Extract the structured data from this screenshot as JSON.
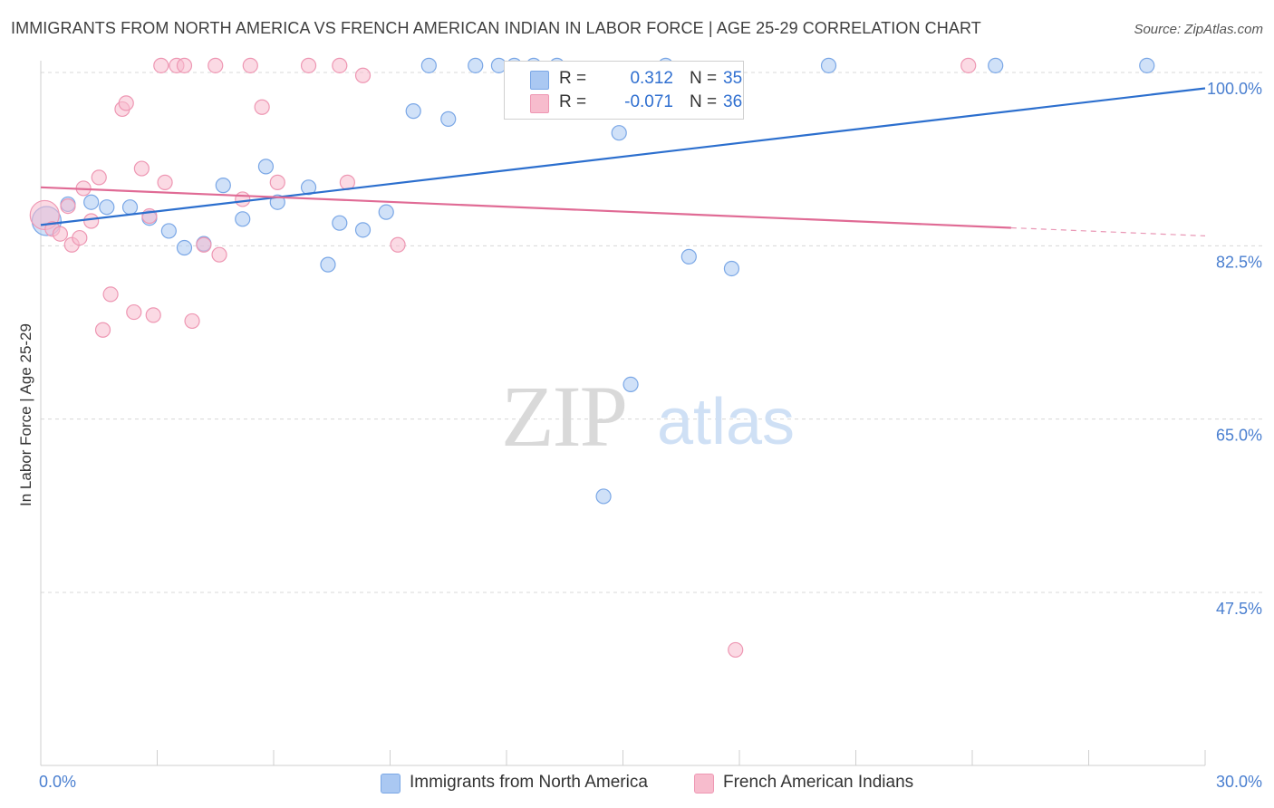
{
  "title": "IMMIGRANTS FROM NORTH AMERICA VS FRENCH AMERICAN INDIAN IN LABOR FORCE | AGE 25-29 CORRELATION CHART",
  "source": "Source: ZipAtlas.com",
  "watermark": {
    "zip": "ZIP",
    "atlas": "atlas"
  },
  "legend": {
    "r_label": "R =",
    "n_label": "N =",
    "rows": [
      {
        "r": "0.312",
        "n": "35"
      },
      {
        "r": "-0.071",
        "n": "36"
      }
    ]
  },
  "colors": {
    "blue_fill": "#aac8f2",
    "blue_stroke": "#7aa7e6",
    "blue_line": "#2c6fce",
    "pink_fill": "#f7bccd",
    "pink_stroke": "#ee97b3",
    "pink_line": "#e06b95",
    "grid": "#d8d8d8",
    "axis_label": "#4a7fd0"
  },
  "chart_data": {
    "type": "scatter",
    "title": "IMMIGRANTS FROM NORTH AMERICA VS FRENCH AMERICAN INDIAN IN LABOR FORCE | AGE 25-29 CORRELATION CHART",
    "xlabel": "",
    "ylabel": "In Labor Force | Age 25-29",
    "xlim": [
      0,
      30
    ],
    "ylim": [
      32,
      102
    ],
    "x_tick_labels": [
      {
        "value": 0,
        "label": "0.0%"
      },
      {
        "value": 30,
        "label": "30.0%"
      }
    ],
    "x_minor_ticks": [
      3,
      6,
      9,
      12,
      15,
      18,
      21,
      24,
      27,
      30
    ],
    "y_ticks": [
      {
        "value": 100,
        "label": "100.0%"
      },
      {
        "value": 82.5,
        "label": "82.5%"
      },
      {
        "value": 65,
        "label": "65.0%"
      },
      {
        "value": 47.5,
        "label": "47.5%"
      }
    ],
    "series": [
      {
        "name": "Immigrants from North America",
        "color": "blue",
        "trend": {
          "x0": 0,
          "y0": 84.6,
          "x1": 30,
          "y1": 98.4,
          "dashed_from": null
        },
        "points": [
          {
            "x": 0.15,
            "y": 85.0,
            "big": true
          },
          {
            "x": 0.7,
            "y": 86.7
          },
          {
            "x": 1.3,
            "y": 86.9
          },
          {
            "x": 1.7,
            "y": 86.4
          },
          {
            "x": 2.3,
            "y": 86.4
          },
          {
            "x": 2.8,
            "y": 85.3
          },
          {
            "x": 3.3,
            "y": 84.0
          },
          {
            "x": 3.7,
            "y": 82.3
          },
          {
            "x": 4.2,
            "y": 82.7
          },
          {
            "x": 4.7,
            "y": 88.6
          },
          {
            "x": 5.2,
            "y": 85.2
          },
          {
            "x": 5.8,
            "y": 90.5
          },
          {
            "x": 6.1,
            "y": 86.9
          },
          {
            "x": 6.9,
            "y": 88.4
          },
          {
            "x": 7.4,
            "y": 80.6
          },
          {
            "x": 7.7,
            "y": 84.8
          },
          {
            "x": 8.3,
            "y": 84.1
          },
          {
            "x": 8.9,
            "y": 85.9
          },
          {
            "x": 9.6,
            "y": 96.1
          },
          {
            "x": 10.0,
            "y": 100.7
          },
          {
            "x": 10.5,
            "y": 95.3
          },
          {
            "x": 11.2,
            "y": 100.7
          },
          {
            "x": 11.8,
            "y": 100.7
          },
          {
            "x": 12.2,
            "y": 100.7
          },
          {
            "x": 12.7,
            "y": 100.7
          },
          {
            "x": 14.9,
            "y": 93.9
          },
          {
            "x": 15.2,
            "y": 68.5
          },
          {
            "x": 14.5,
            "y": 57.2
          },
          {
            "x": 16.1,
            "y": 100.7
          },
          {
            "x": 16.7,
            "y": 81.4
          },
          {
            "x": 17.8,
            "y": 80.2
          },
          {
            "x": 20.3,
            "y": 100.7
          },
          {
            "x": 24.6,
            "y": 100.7
          },
          {
            "x": 28.5,
            "y": 100.7
          },
          {
            "x": 13.3,
            "y": 100.7
          }
        ]
      },
      {
        "name": "French American Indians",
        "color": "pink",
        "trend": {
          "x0": 0,
          "y0": 88.4,
          "x1": 30,
          "y1": 83.5,
          "dashed_from": 25
        },
        "points": [
          {
            "x": 0.1,
            "y": 85.6,
            "big": true
          },
          {
            "x": 0.3,
            "y": 84.2
          },
          {
            "x": 0.5,
            "y": 83.7
          },
          {
            "x": 0.7,
            "y": 86.5
          },
          {
            "x": 0.8,
            "y": 82.6
          },
          {
            "x": 1.0,
            "y": 83.3
          },
          {
            "x": 1.1,
            "y": 88.3
          },
          {
            "x": 1.3,
            "y": 85.0
          },
          {
            "x": 1.5,
            "y": 89.4
          },
          {
            "x": 1.6,
            "y": 74.0
          },
          {
            "x": 1.8,
            "y": 77.6
          },
          {
            "x": 2.1,
            "y": 96.3
          },
          {
            "x": 2.2,
            "y": 96.9
          },
          {
            "x": 2.4,
            "y": 75.8
          },
          {
            "x": 2.6,
            "y": 90.3
          },
          {
            "x": 2.8,
            "y": 85.5
          },
          {
            "x": 2.9,
            "y": 75.5
          },
          {
            "x": 3.1,
            "y": 100.7
          },
          {
            "x": 3.2,
            "y": 88.9
          },
          {
            "x": 3.5,
            "y": 100.7
          },
          {
            "x": 3.7,
            "y": 100.7
          },
          {
            "x": 3.9,
            "y": 74.9
          },
          {
            "x": 4.2,
            "y": 82.6
          },
          {
            "x": 4.6,
            "y": 81.6
          },
          {
            "x": 4.5,
            "y": 100.7
          },
          {
            "x": 5.2,
            "y": 87.2
          },
          {
            "x": 5.4,
            "y": 100.7
          },
          {
            "x": 5.7,
            "y": 96.5
          },
          {
            "x": 6.1,
            "y": 88.9
          },
          {
            "x": 6.9,
            "y": 100.7
          },
          {
            "x": 7.7,
            "y": 100.7
          },
          {
            "x": 7.9,
            "y": 88.9
          },
          {
            "x": 8.3,
            "y": 99.7
          },
          {
            "x": 9.2,
            "y": 82.6
          },
          {
            "x": 17.9,
            "y": 41.7
          },
          {
            "x": 23.9,
            "y": 100.7
          }
        ]
      }
    ]
  },
  "bottom_legend": [
    {
      "label": "Immigrants from North America"
    },
    {
      "label": "French American Indians"
    }
  ]
}
